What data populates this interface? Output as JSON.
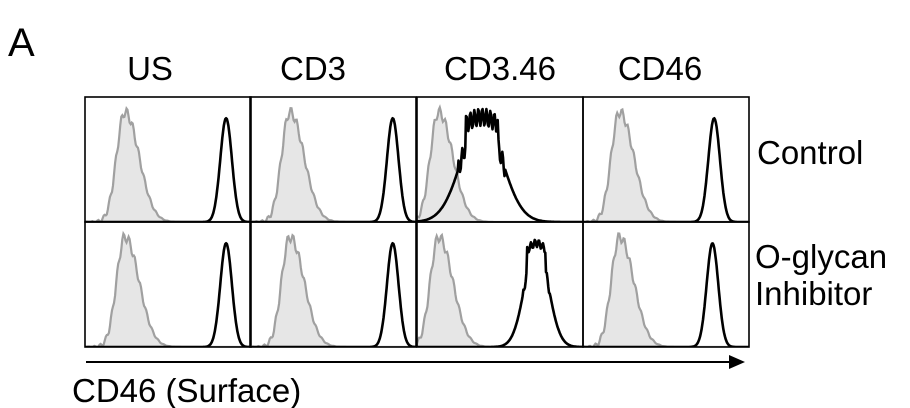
{
  "panel_label": "A",
  "x_axis_label": "CD46 (Surface)",
  "columns": [
    "US",
    "CD3",
    "CD3.46",
    "CD46"
  ],
  "rows": [
    "Control",
    "O-glycan\nInhibitor"
  ],
  "colors": {
    "isotype_fill": "#e6e6e6",
    "isotype_line": "#a0a0a0",
    "stain_line": "#000000",
    "frame": "#000000"
  },
  "chart_data": {
    "type": "histogram-grid",
    "xlabel": "CD46 (Surface)",
    "column_labels": [
      "US",
      "CD3",
      "CD3.46",
      "CD46"
    ],
    "row_labels": [
      "Control",
      "O-glycan Inhibitor"
    ],
    "x_scale": "relative fluorescence (0-1 of panel width, unlabeled)",
    "series_legend": [
      {
        "role": "isotype control",
        "style": "grey filled"
      },
      {
        "role": "CD46 stain",
        "style": "black line"
      }
    ],
    "panels": [
      {
        "row": "Control",
        "column": "US",
        "isotype_peak": 0.24,
        "stain_peak": 0.85,
        "stain_width": 0.035,
        "stain_height": 0.83
      },
      {
        "row": "Control",
        "column": "CD3",
        "isotype_peak": 0.24,
        "stain_peak": 0.86,
        "stain_width": 0.035,
        "stain_height": 0.83
      },
      {
        "row": "Control",
        "column": "CD3.46",
        "isotype_peak": 0.13,
        "stain_peak": 0.39,
        "stain_width": 0.12,
        "stain_height": 0.84,
        "stain_shape": "broad/jagged"
      },
      {
        "row": "Control",
        "column": "CD46",
        "isotype_peak": 0.22,
        "stain_peak": 0.79,
        "stain_width": 0.035,
        "stain_height": 0.83
      },
      {
        "row": "O-glycan Inhibitor",
        "column": "US",
        "isotype_peak": 0.24,
        "stain_peak": 0.85,
        "stain_width": 0.035,
        "stain_height": 0.83
      },
      {
        "row": "O-glycan Inhibitor",
        "column": "CD3",
        "isotype_peak": 0.24,
        "stain_peak": 0.86,
        "stain_width": 0.035,
        "stain_height": 0.83
      },
      {
        "row": "O-glycan Inhibitor",
        "column": "CD3.46",
        "isotype_peak": 0.13,
        "stain_peak": 0.72,
        "stain_width": 0.07,
        "stain_height": 0.83,
        "stain_shape": "moderately broad"
      },
      {
        "row": "O-glycan Inhibitor",
        "column": "CD46",
        "isotype_peak": 0.22,
        "stain_peak": 0.78,
        "stain_width": 0.035,
        "stain_height": 0.83
      }
    ]
  }
}
